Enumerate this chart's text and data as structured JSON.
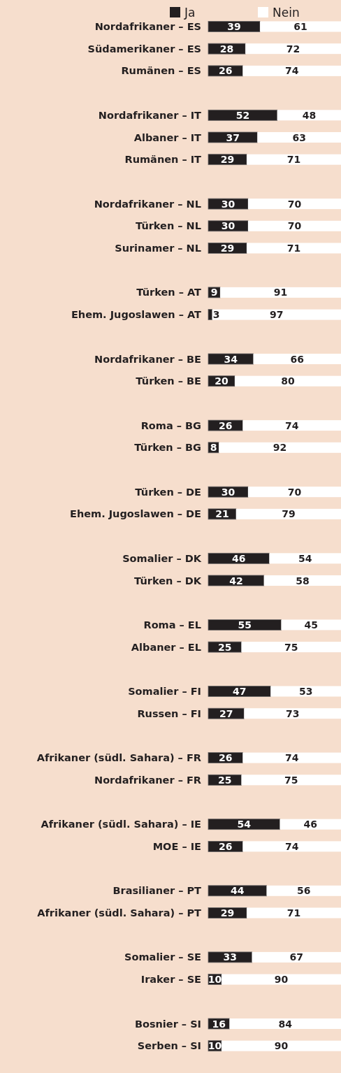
{
  "chart_data": {
    "type": "bar",
    "orientation": "horizontal",
    "stacked": true,
    "data_labels": true,
    "legend": "top",
    "xlim": [
      0,
      100
    ],
    "tick_labels": "y",
    "categories": [
      "Nordafrikaner – ES",
      "Südamerikaner – ES",
      "Rumänen – ES",
      null,
      "Nordafrikaner – IT",
      "Albaner – IT",
      "Rumänen – IT",
      null,
      "Nordafrikaner – NL",
      "Türken – NL",
      "Surinamer – NL",
      null,
      "Türken – AT",
      "Ehem. Jugoslawen – AT",
      null,
      "Nordafrikaner – BE",
      "Türken – BE",
      null,
      "Roma – BG",
      "Türken – BG",
      null,
      "Türken – DE",
      "Ehem. Jugoslawen – DE",
      null,
      "Somalier – DK",
      "Türken – DK",
      null,
      "Roma – EL",
      "Albaner – EL",
      null,
      "Somalier – FI",
      "Russen – FI",
      null,
      "Afrikaner (südl. Sahara) – FR",
      "Nordafrikaner – FR",
      null,
      "Afrikaner (südl. Sahara) – IE",
      "MOE – IE",
      null,
      "Brasilianer – PT",
      "Afrikaner (südl. Sahara) – PT",
      null,
      "Somalier – SE",
      "Iraker – SE",
      null,
      "Bosnier – SI",
      "Serben – SI"
    ],
    "series": [
      {
        "name": "Ja",
        "color": "#231f20",
        "values": [
          39,
          28,
          26,
          null,
          52,
          37,
          29,
          null,
          30,
          30,
          29,
          null,
          9,
          3,
          null,
          34,
          20,
          null,
          26,
          8,
          null,
          30,
          21,
          null,
          46,
          42,
          null,
          55,
          25,
          null,
          47,
          27,
          null,
          26,
          25,
          null,
          54,
          26,
          null,
          44,
          29,
          null,
          33,
          10,
          null,
          16,
          10
        ]
      },
      {
        "name": "Nein",
        "color": "#ffffff",
        "values": [
          61,
          72,
          74,
          null,
          48,
          63,
          71,
          null,
          70,
          70,
          71,
          null,
          91,
          97,
          null,
          66,
          80,
          null,
          74,
          92,
          null,
          70,
          79,
          null,
          54,
          58,
          null,
          45,
          75,
          null,
          53,
          73,
          null,
          74,
          75,
          null,
          46,
          74,
          null,
          56,
          71,
          null,
          67,
          90,
          null,
          84,
          90
        ]
      }
    ]
  }
}
